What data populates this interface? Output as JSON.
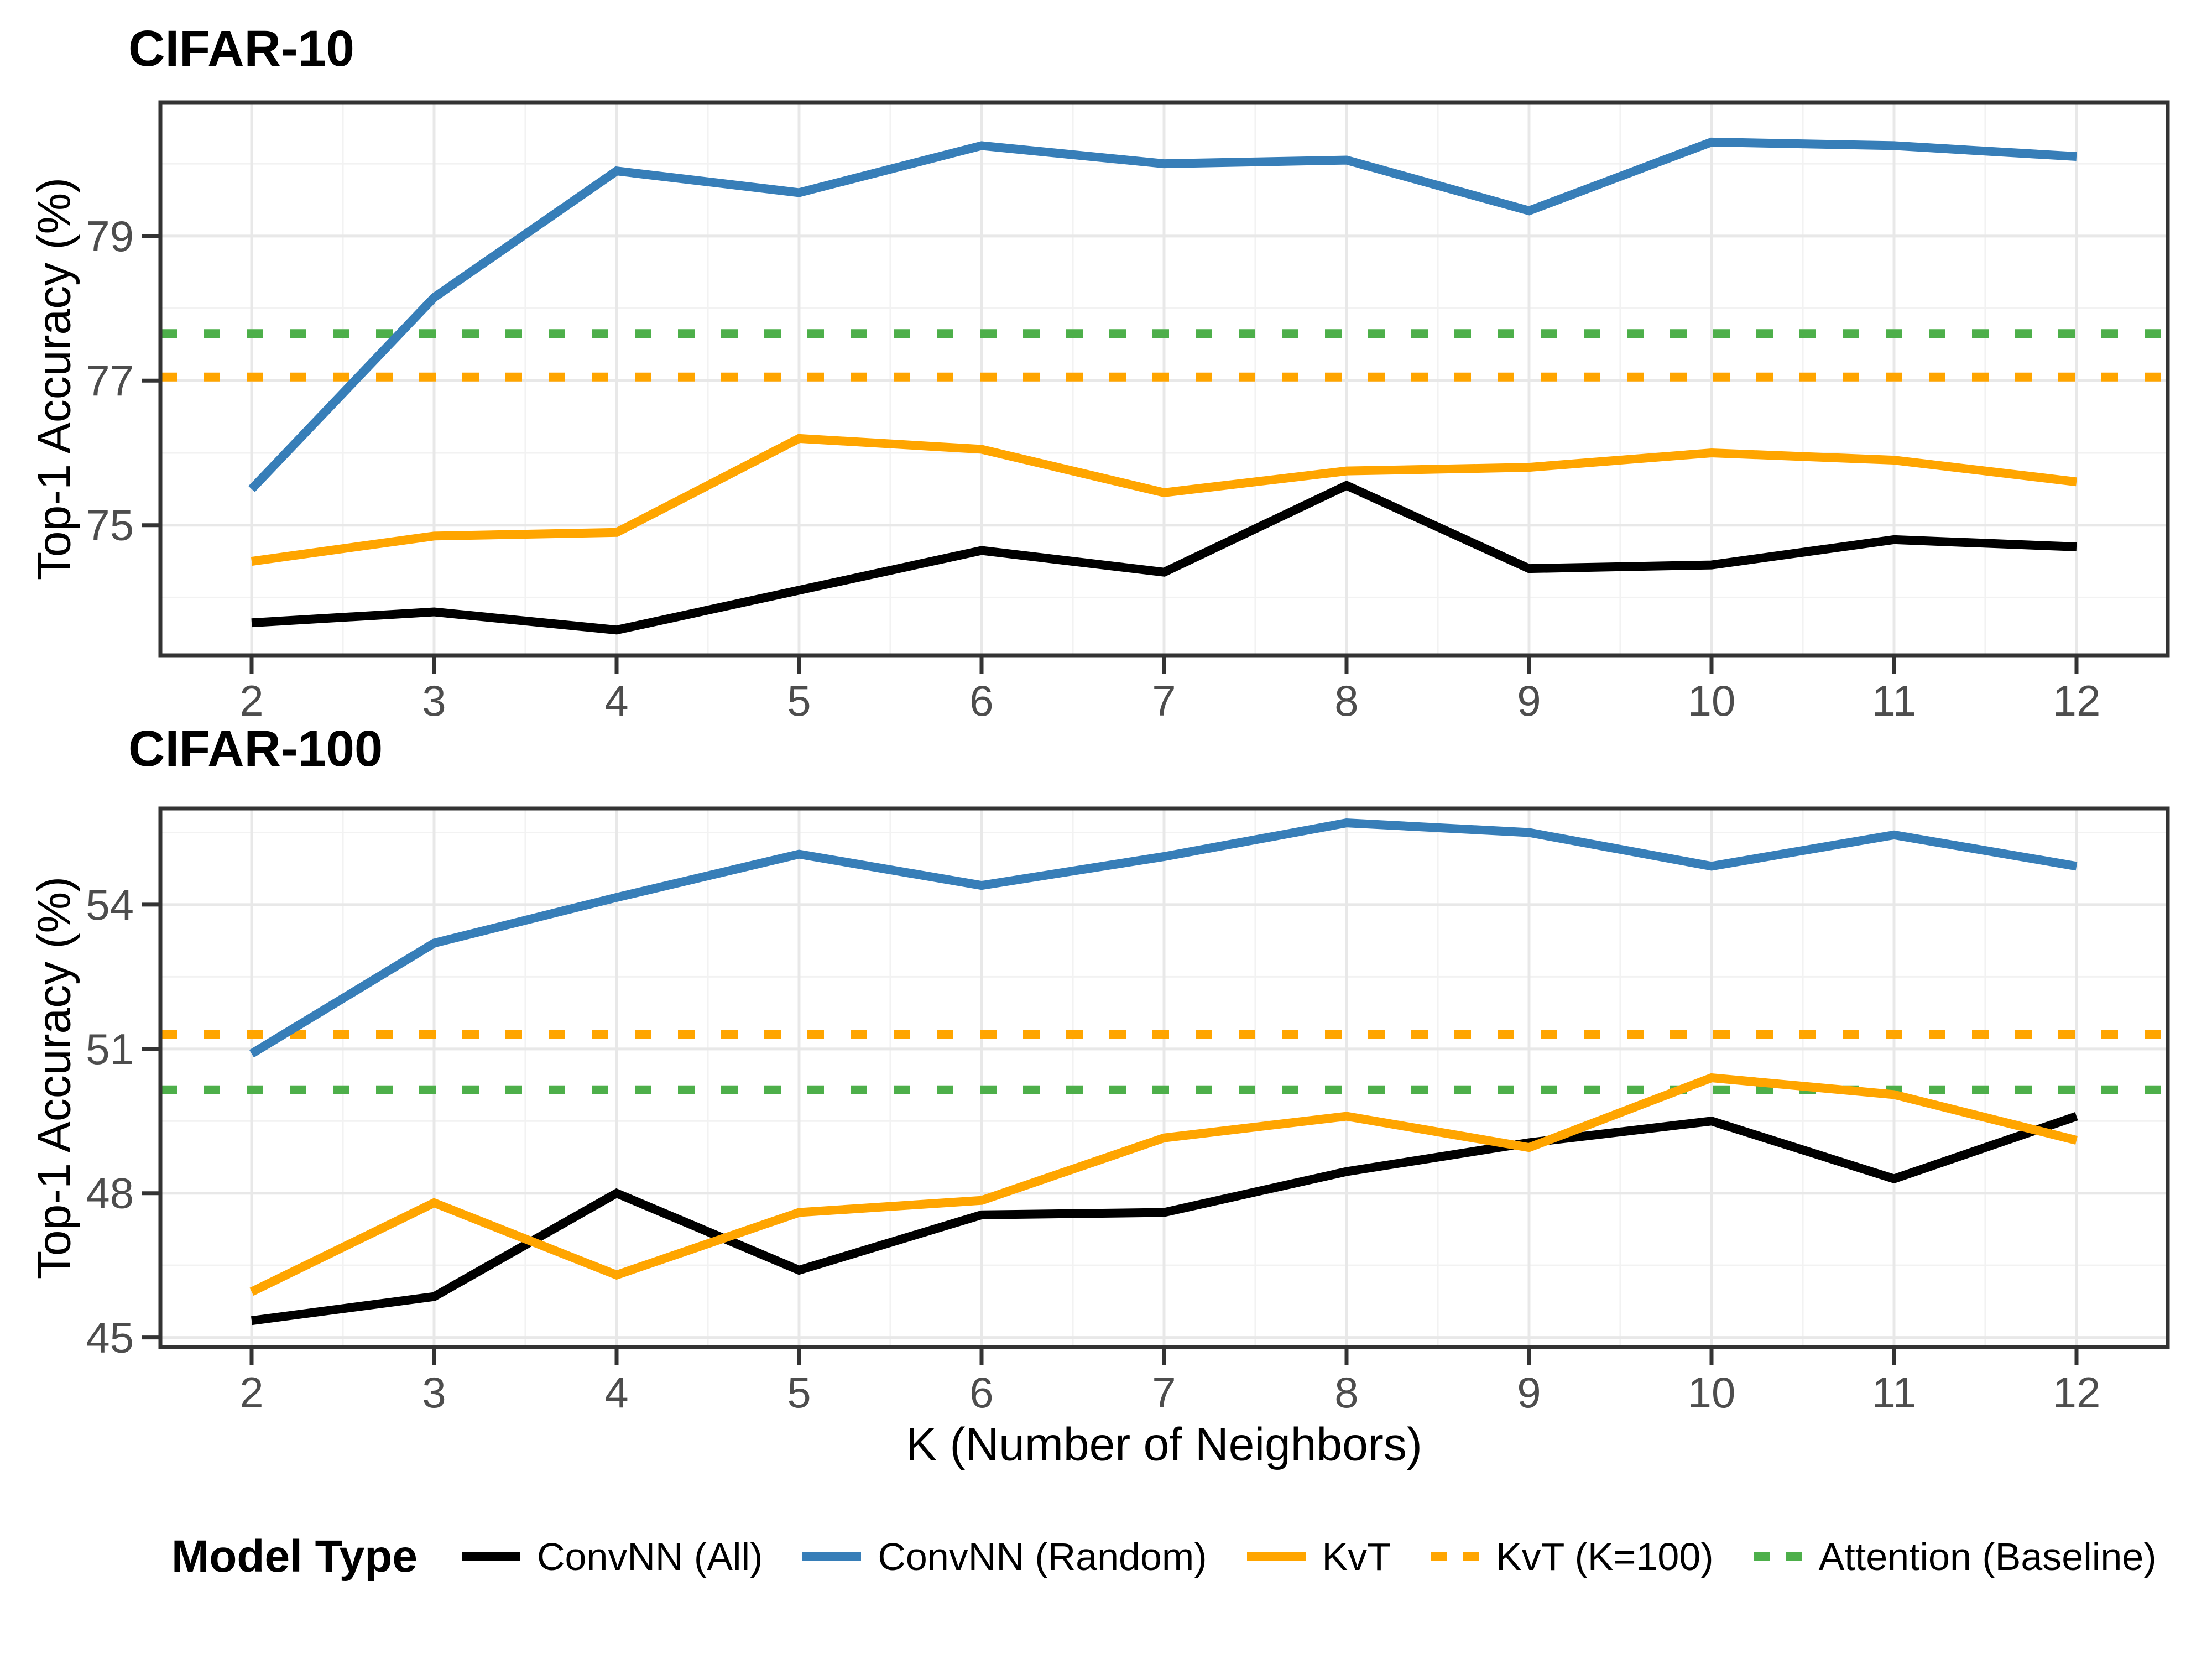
{
  "figure": {
    "background": "#FFFFFF",
    "panel_border_color": "#333333",
    "tick_color": "#333333",
    "tick_label_color": "#4D4D4D",
    "grid_major_color": "#E8E8E8",
    "grid_minor_color": "#F2F2F2"
  },
  "xlabel": "K (Number of Neighbors)",
  "legend": {
    "title": "Model Type",
    "entries": [
      {
        "label": "ConvNN (All)",
        "color": "#000000",
        "style": "solid"
      },
      {
        "label": "ConvNN (Random)",
        "color": "#377EB8",
        "style": "solid"
      },
      {
        "label": "KvT",
        "color": "#FFA500",
        "style": "solid"
      },
      {
        "label": "KvT (K=100)",
        "color": "#FFA500",
        "style": "dotted"
      },
      {
        "label": "Attention (Baseline)",
        "color": "#4DAF4A",
        "style": "dotted"
      }
    ]
  },
  "chart_data": [
    {
      "type": "line",
      "title": "CIFAR-10",
      "xlabel": "",
      "ylabel": "Top-1 Accuracy (%)",
      "x": [
        2,
        3,
        4,
        5,
        6,
        7,
        8,
        9,
        10,
        11,
        12
      ],
      "xlim": [
        1.5,
        12.5
      ],
      "ylim": [
        73.2,
        80.85
      ],
      "x_major_gridlines": [
        2,
        3,
        4,
        5,
        6,
        7,
        8,
        9,
        10,
        11,
        12
      ],
      "x_minor_gridlines": [
        2.5,
        3.5,
        4.5,
        5.5,
        6.5,
        7.5,
        8.5,
        9.5,
        10.5,
        11.5
      ],
      "y_major_ticks": [
        75,
        77,
        79
      ],
      "y_minor_gridlines": [
        74,
        76,
        78,
        80
      ],
      "grid": true,
      "series": [
        {
          "name": "ConvNN (All)",
          "color": "#000000",
          "values": [
            73.65,
            73.8,
            73.55,
            74.1,
            74.65,
            74.35,
            75.55,
            74.4,
            74.45,
            74.8,
            74.7
          ]
        },
        {
          "name": "ConvNN (Random)",
          "color": "#377EB8",
          "values": [
            75.5,
            78.15,
            79.9,
            79.6,
            80.25,
            80.0,
            80.05,
            79.35,
            80.3,
            80.25,
            80.1
          ]
        },
        {
          "name": "KvT",
          "color": "#FFA500",
          "values": [
            74.5,
            74.85,
            74.9,
            76.2,
            76.05,
            75.45,
            75.75,
            75.8,
            76.0,
            75.9,
            75.6
          ]
        }
      ],
      "baselines": [
        {
          "name": "KvT (K=100)",
          "color": "#FFA500",
          "value": 77.05,
          "style": "dotted"
        },
        {
          "name": "Attention (Baseline)",
          "color": "#4DAF4A",
          "value": 77.65,
          "style": "dotted"
        }
      ]
    },
    {
      "type": "line",
      "title": "CIFAR-100",
      "xlabel": "K (Number of Neighbors)",
      "ylabel": "Top-1 Accuracy (%)",
      "x": [
        2,
        3,
        4,
        5,
        6,
        7,
        8,
        9,
        10,
        11,
        12
      ],
      "xlim": [
        1.5,
        12.5
      ],
      "ylim": [
        44.8,
        56.0
      ],
      "x_major_gridlines": [
        2,
        3,
        4,
        5,
        6,
        7,
        8,
        9,
        10,
        11,
        12
      ],
      "x_minor_gridlines": [
        2.5,
        3.5,
        4.5,
        5.5,
        6.5,
        7.5,
        8.5,
        9.5,
        10.5,
        11.5
      ],
      "y_major_ticks": [
        45,
        48,
        51,
        54
      ],
      "y_minor_gridlines": [
        46.5,
        49.5,
        52.5,
        55.5
      ],
      "grid": true,
      "series": [
        {
          "name": "ConvNN (All)",
          "color": "#000000",
          "values": [
            45.35,
            45.85,
            48.0,
            46.4,
            47.55,
            47.6,
            48.45,
            49.05,
            49.5,
            48.3,
            49.6
          ]
        },
        {
          "name": "ConvNN (Random)",
          "color": "#377EB8",
          "values": [
            50.9,
            53.2,
            54.15,
            55.05,
            54.4,
            55.0,
            55.7,
            55.5,
            54.8,
            55.45,
            54.8
          ]
        },
        {
          "name": "KvT",
          "color": "#FFA500",
          "values": [
            45.95,
            47.8,
            46.3,
            47.6,
            47.85,
            49.15,
            49.6,
            48.95,
            50.4,
            50.05,
            49.1
          ]
        }
      ],
      "baselines": [
        {
          "name": "KvT (K=100)",
          "color": "#FFA500",
          "value": 51.3,
          "style": "dotted"
        },
        {
          "name": "Attention (Baseline)",
          "color": "#4DAF4A",
          "value": 50.15,
          "style": "dotted"
        }
      ]
    }
  ]
}
